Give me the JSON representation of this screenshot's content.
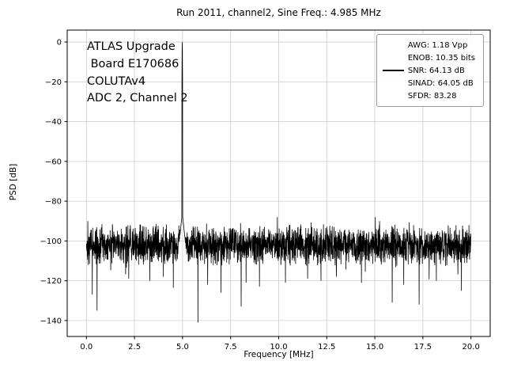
{
  "chart_data": {
    "type": "line",
    "title": "Run 2011, channel2, Sine Freq.: 4.985 MHz",
    "xlabel": "Frequency [MHz]",
    "ylabel": "PSD [dB]",
    "xlim": [
      -1,
      21
    ],
    "ylim": [
      -148,
      6
    ],
    "xticks": [
      0.0,
      2.5,
      5.0,
      7.5,
      10.0,
      12.5,
      15.0,
      17.5,
      20.0
    ],
    "xtick_labels": [
      "0.0",
      "2.5",
      "5.0",
      "7.5",
      "10.0",
      "12.5",
      "15.0",
      "17.5",
      "20.0"
    ],
    "yticks": [
      0,
      -20,
      -40,
      -60,
      -80,
      -100,
      -120,
      -140
    ],
    "ytick_labels": [
      "0",
      "−20",
      "−40",
      "−60",
      "−80",
      "−100",
      "−120",
      "−140"
    ],
    "grid": true,
    "legend_position": "upper right",
    "series": [
      {
        "name": "PSD",
        "color": "#000000"
      }
    ],
    "peak": {
      "freq_mhz": 4.985,
      "db": 0
    },
    "noise": {
      "floor_db": -102,
      "half_spread_db": 11,
      "seed": 42,
      "step_mhz": 0.008,
      "range_mhz": [
        0,
        20
      ],
      "skirt_top_db": -86,
      "skirt_halfwidth_mhz": 0.3
    },
    "up_spikes": [
      [
        0.07,
        -90
      ],
      [
        3.1,
        -93
      ],
      [
        8.02,
        -91
      ],
      [
        9.93,
        -88
      ],
      [
        10.55,
        -92
      ],
      [
        15.02,
        -88
      ],
      [
        15.25,
        -90
      ],
      [
        19.9,
        -92
      ]
    ],
    "deep_dips": [
      [
        0.3,
        -127
      ],
      [
        0.55,
        -135
      ],
      [
        2.2,
        -119
      ],
      [
        3.3,
        -120
      ],
      [
        4.0,
        -118
      ],
      [
        5.8,
        -141
      ],
      [
        6.3,
        -122
      ],
      [
        7.0,
        -126
      ],
      [
        8.05,
        -133
      ],
      [
        8.3,
        -121
      ],
      [
        9.0,
        -123
      ],
      [
        10.35,
        -121
      ],
      [
        11.5,
        -119
      ],
      [
        12.2,
        -120
      ],
      [
        13.0,
        -118
      ],
      [
        14.3,
        -121
      ],
      [
        15.9,
        -131
      ],
      [
        16.5,
        -122
      ],
      [
        17.3,
        -132
      ],
      [
        18.2,
        -120
      ],
      [
        19.5,
        -125
      ]
    ],
    "annotations": [
      "ATLAS Upgrade",
      " Board E170686",
      "COLUTAv4",
      "ADC 2, Channel 2"
    ]
  },
  "legend": {
    "entries": [
      {
        "label": "AWG: 1.18 Vpp",
        "marker": false
      },
      {
        "label": "ENOB: 10.35 bits",
        "marker": false
      },
      {
        "label": "SNR: 64.13 dB",
        "marker": true,
        "marker_color": "#000000"
      },
      {
        "label": "SINAD: 64.05 dB",
        "marker": false
      },
      {
        "label": "SFDR: 83.28",
        "marker": false
      }
    ]
  },
  "colors": {
    "trace": "#000000",
    "grid": "#cccccc",
    "spine": "#000000",
    "background": "#ffffff"
  }
}
